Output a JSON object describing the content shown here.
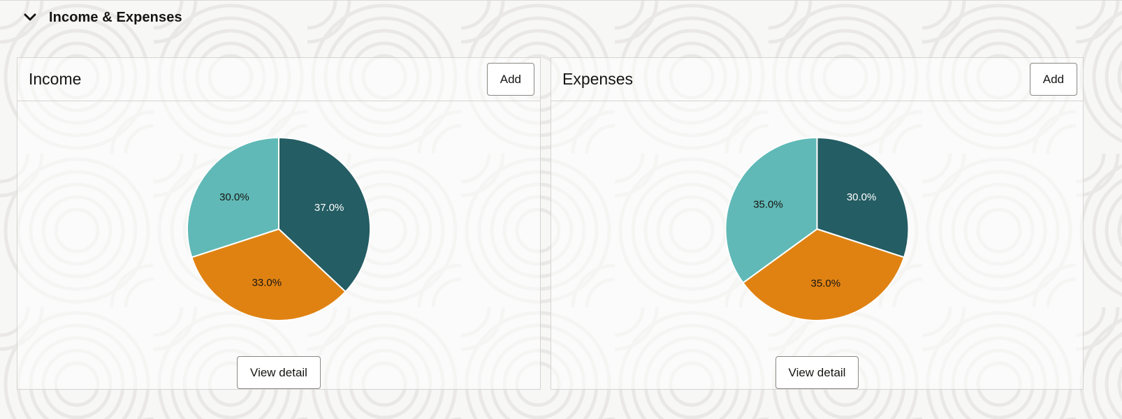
{
  "section": {
    "title": "Income & Expenses",
    "chevron_icon": "chevron-down-icon"
  },
  "income": {
    "title": "Income",
    "add_label": "Add",
    "view_label": "View detail"
  },
  "expenses": {
    "title": "Expenses",
    "add_label": "Add",
    "view_label": "View detail"
  },
  "colors": {
    "dark_teal": "#245d63",
    "orange": "#e08212",
    "light_teal": "#60b9b6"
  },
  "chart_data": [
    {
      "type": "pie",
      "title": "",
      "slices": [
        {
          "label": "37.0%",
          "value": 37.0,
          "color": "#245d63",
          "label_color": "#ffffff"
        },
        {
          "label": "33.0%",
          "value": 33.0,
          "color": "#e08212",
          "label_color": "#161513"
        },
        {
          "label": "30.0%",
          "value": 30.0,
          "color": "#60b9b6",
          "label_color": "#161513"
        }
      ]
    },
    {
      "type": "pie",
      "title": "",
      "slices": [
        {
          "label": "30.0%",
          "value": 30.0,
          "color": "#245d63",
          "label_color": "#ffffff"
        },
        {
          "label": "35.0%",
          "value": 35.0,
          "color": "#e08212",
          "label_color": "#161513"
        },
        {
          "label": "35.0%",
          "value": 35.0,
          "color": "#60b9b6",
          "label_color": "#161513"
        }
      ]
    }
  ]
}
